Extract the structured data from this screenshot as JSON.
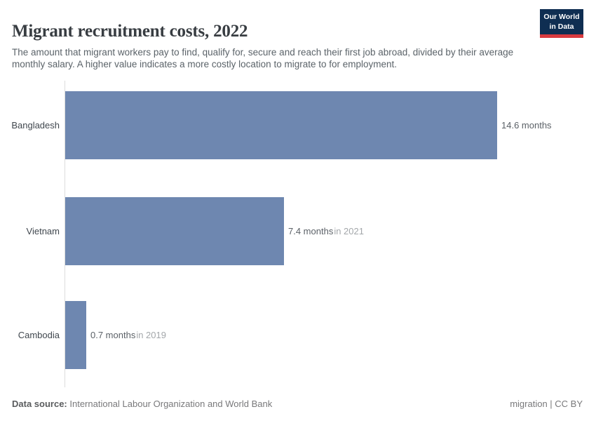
{
  "header": {
    "title": "Migrant recruitment costs, 2022",
    "subtitle": "The amount that migrant workers pay to find, qualify for, secure and reach their first job abroad, divided by their average monthly salary. A higher value indicates a more costly location to migrate to for employment.",
    "logo": {
      "line1": "Our World",
      "line2": "in Data",
      "bg_color": "#0f2e52",
      "accent_color": "#d93a3f"
    }
  },
  "chart_data": {
    "type": "bar",
    "orientation": "horizontal",
    "title": "Migrant recruitment costs, 2022",
    "unit": "months",
    "categories": [
      "Bangladesh",
      "Vietnam",
      "Cambodia"
    ],
    "values": [
      14.6,
      7.4,
      0.7
    ],
    "xlim": [
      0,
      14.6
    ],
    "grid": false,
    "legend": "none",
    "bar_color": "#6e87b0",
    "axis_color": "#dcdcdc",
    "rows": [
      {
        "entity": "Bangladesh",
        "value": 14.6,
        "value_label": "14.6 months",
        "year_note": ""
      },
      {
        "entity": "Vietnam",
        "value": 7.4,
        "value_label": "7.4 months",
        "year_note": "in 2021"
      },
      {
        "entity": "Cambodia",
        "value": 0.7,
        "value_label": "0.7 months",
        "year_note": "in 2019"
      }
    ]
  },
  "footer": {
    "source_label": "Data source:",
    "source_text": "International Labour Organization and World Bank",
    "right_text": "migration | CC BY"
  }
}
